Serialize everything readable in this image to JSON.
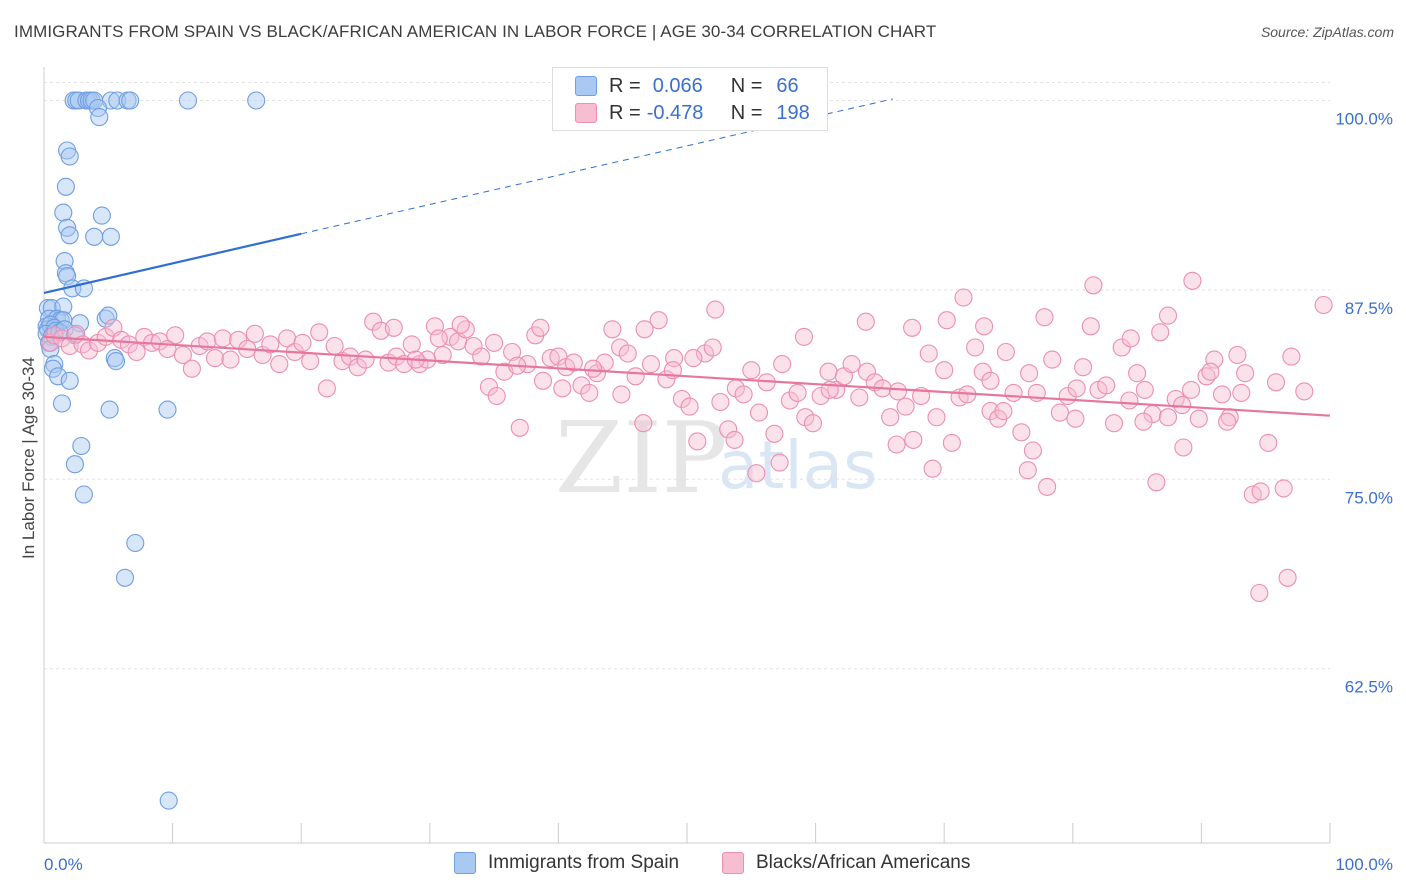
{
  "title": "IMMIGRANTS FROM SPAIN VS BLACK/AFRICAN AMERICAN IN LABOR FORCE | AGE 30-34 CORRELATION CHART",
  "source": "Source: ZipAtlas.com",
  "watermark": {
    "zip": "ZIP",
    "atlas": "atlas"
  },
  "legend": {
    "series": [
      {
        "r_label": "R =",
        "r_value": "0.066",
        "n_label": "N =",
        "n_value": "66",
        "color": "#a9c8f2",
        "stroke": "#6f9fe0"
      },
      {
        "r_label": "R =",
        "r_value": "-0.478",
        "n_label": "N =",
        "n_value": "198",
        "color": "#f7bdd0",
        "stroke": "#ec8fb1"
      }
    ]
  },
  "chart_data": {
    "type": "scatter",
    "title": "IMMIGRANTS FROM SPAIN VS BLACK/AFRICAN AMERICAN IN LABOR FORCE | AGE 30-34 CORRELATION CHART",
    "xlabel": "",
    "ylabel": "In Labor Force | Age 30-34",
    "xlim": [
      0,
      100
    ],
    "ylim": [
      51,
      103
    ],
    "x_tick_labels": [
      "0.0%",
      "100.0%"
    ],
    "y_ticks": [
      62.5,
      75.0,
      87.5,
      100.0
    ],
    "y_tick_labels": [
      "62.5%",
      "75.0%",
      "87.5%",
      "100.0%"
    ],
    "grid": true,
    "legend_position": "bottom",
    "series": [
      {
        "name": "Immigrants from Spain",
        "color": "#6f9fe0",
        "fill": "#a9c8f2",
        "trend": {
          "x": [
            0,
            20
          ],
          "y": [
            87.3,
            91.2
          ],
          "dashed_extension": {
            "x": [
              20,
              66
            ],
            "y": [
              91.2,
              100.1
            ]
          },
          "color": "#2f6fd0"
        },
        "points": [
          [
            2.3,
            100
          ],
          [
            2.5,
            100
          ],
          [
            2.7,
            100
          ],
          [
            3.3,
            100
          ],
          [
            3.5,
            100
          ],
          [
            3.7,
            100
          ],
          [
            3.9,
            100
          ],
          [
            5.2,
            100
          ],
          [
            5.7,
            100
          ],
          [
            6.5,
            100
          ],
          [
            6.7,
            100
          ],
          [
            11.2,
            100
          ],
          [
            16.5,
            100
          ],
          [
            4.2,
            99.5
          ],
          [
            4.3,
            98.9
          ],
          [
            1.8,
            96.7
          ],
          [
            2.0,
            96.3
          ],
          [
            1.7,
            94.3
          ],
          [
            1.5,
            92.6
          ],
          [
            4.5,
            92.4
          ],
          [
            1.8,
            91.6
          ],
          [
            2.0,
            91.1
          ],
          [
            3.9,
            91.0
          ],
          [
            5.2,
            91.0
          ],
          [
            1.6,
            89.4
          ],
          [
            1.7,
            88.6
          ],
          [
            1.8,
            88.4
          ],
          [
            2.2,
            87.6
          ],
          [
            3.1,
            87.6
          ],
          [
            0.3,
            86.3
          ],
          [
            0.6,
            86.3
          ],
          [
            1.5,
            86.4
          ],
          [
            0.4,
            85.6
          ],
          [
            1.0,
            85.6
          ],
          [
            1.3,
            85.5
          ],
          [
            1.5,
            85.5
          ],
          [
            4.8,
            85.6
          ],
          [
            2.8,
            85.3
          ],
          [
            5.0,
            85.8
          ],
          [
            0.2,
            85.1
          ],
          [
            0.3,
            84.9
          ],
          [
            0.5,
            85.2
          ],
          [
            0.8,
            85.0
          ],
          [
            0.2,
            84.6
          ],
          [
            0.6,
            84.4
          ],
          [
            0.9,
            84.8
          ],
          [
            1.2,
            84.7
          ],
          [
            1.6,
            84.9
          ],
          [
            2.4,
            84.5
          ],
          [
            0.4,
            84.0
          ],
          [
            0.5,
            83.6
          ],
          [
            5.5,
            83.0
          ],
          [
            5.6,
            82.8
          ],
          [
            0.8,
            82.6
          ],
          [
            0.7,
            82.3
          ],
          [
            1.1,
            81.8
          ],
          [
            2.0,
            81.5
          ],
          [
            1.4,
            80.0
          ],
          [
            5.1,
            79.6
          ],
          [
            9.6,
            79.6
          ],
          [
            2.9,
            77.2
          ],
          [
            2.4,
            76.0
          ],
          [
            3.1,
            74.0
          ],
          [
            7.1,
            70.8
          ],
          [
            6.3,
            68.5
          ],
          [
            9.7,
            53.8
          ]
        ]
      },
      {
        "name": "Blacks/African Americans",
        "color": "#ec8fb1",
        "fill": "#f7bdd0",
        "trend": {
          "x": [
            0,
            100
          ],
          "y": [
            84.4,
            79.2
          ],
          "color": "#e7769e"
        },
        "points": [
          [
            0.5,
            84.0
          ],
          [
            0.8,
            84.5
          ],
          [
            1.4,
            84.3
          ],
          [
            2.0,
            83.8
          ],
          [
            2.5,
            84.6
          ],
          [
            3.0,
            83.9
          ],
          [
            3.5,
            83.5
          ],
          [
            4.2,
            84.0
          ],
          [
            4.8,
            84.4
          ],
          [
            5.4,
            85.0
          ],
          [
            6.0,
            84.2
          ],
          [
            6.6,
            83.9
          ],
          [
            7.2,
            83.4
          ],
          [
            7.8,
            84.4
          ],
          [
            8.4,
            84.0
          ],
          [
            9.0,
            84.1
          ],
          [
            9.6,
            83.6
          ],
          [
            10.2,
            84.5
          ],
          [
            10.8,
            83.2
          ],
          [
            11.5,
            82.3
          ],
          [
            12.1,
            83.8
          ],
          [
            12.7,
            84.1
          ],
          [
            13.3,
            83.0
          ],
          [
            13.9,
            84.3
          ],
          [
            14.5,
            82.9
          ],
          [
            15.1,
            84.2
          ],
          [
            15.8,
            83.6
          ],
          [
            16.4,
            84.6
          ],
          [
            17.0,
            83.2
          ],
          [
            17.6,
            83.9
          ],
          [
            18.3,
            82.6
          ],
          [
            18.9,
            84.3
          ],
          [
            19.5,
            83.4
          ],
          [
            20.1,
            84.0
          ],
          [
            20.7,
            82.8
          ],
          [
            21.4,
            84.7
          ],
          [
            22.0,
            81.0
          ],
          [
            22.6,
            83.8
          ],
          [
            23.2,
            82.8
          ],
          [
            23.8,
            83.1
          ],
          [
            24.4,
            82.4
          ],
          [
            25.0,
            82.9
          ],
          [
            25.6,
            85.4
          ],
          [
            26.2,
            84.8
          ],
          [
            26.8,
            82.7
          ],
          [
            27.4,
            83.1
          ],
          [
            28.0,
            82.6
          ],
          [
            28.6,
            83.9
          ],
          [
            29.2,
            82.6
          ],
          [
            29.8,
            82.9
          ],
          [
            30.4,
            85.1
          ],
          [
            31.0,
            83.2
          ],
          [
            31.6,
            84.4
          ],
          [
            32.2,
            84.1
          ],
          [
            32.8,
            84.9
          ],
          [
            33.4,
            83.8
          ],
          [
            34.0,
            83.1
          ],
          [
            34.6,
            81.1
          ],
          [
            35.2,
            80.5
          ],
          [
            35.8,
            82.1
          ],
          [
            36.4,
            83.4
          ],
          [
            37.0,
            78.4
          ],
          [
            37.6,
            82.6
          ],
          [
            38.2,
            84.5
          ],
          [
            38.8,
            81.5
          ],
          [
            39.4,
            83.0
          ],
          [
            40.0,
            83.1
          ],
          [
            40.6,
            82.4
          ],
          [
            41.2,
            82.7
          ],
          [
            41.8,
            81.2
          ],
          [
            42.4,
            80.7
          ],
          [
            43.0,
            82.0
          ],
          [
            43.6,
            82.7
          ],
          [
            44.2,
            84.9
          ],
          [
            44.8,
            83.7
          ],
          [
            45.4,
            83.3
          ],
          [
            46.0,
            81.8
          ],
          [
            46.6,
            78.7
          ],
          [
            47.2,
            82.6
          ],
          [
            47.8,
            85.5
          ],
          [
            48.4,
            81.6
          ],
          [
            49.0,
            83.0
          ],
          [
            49.6,
            80.3
          ],
          [
            50.2,
            79.8
          ],
          [
            50.8,
            77.5
          ],
          [
            51.4,
            83.3
          ],
          [
            52.0,
            83.7
          ],
          [
            52.6,
            80.1
          ],
          [
            53.2,
            78.3
          ],
          [
            53.8,
            81.0
          ],
          [
            54.4,
            80.6
          ],
          [
            55.0,
            82.2
          ],
          [
            55.6,
            79.4
          ],
          [
            56.2,
            81.4
          ],
          [
            56.8,
            78.0
          ],
          [
            57.4,
            82.6
          ],
          [
            58.0,
            80.2
          ],
          [
            58.6,
            80.7
          ],
          [
            59.2,
            79.1
          ],
          [
            59.8,
            78.7
          ],
          [
            60.4,
            80.5
          ],
          [
            61.0,
            82.1
          ],
          [
            61.6,
            80.9
          ],
          [
            62.2,
            81.8
          ],
          [
            62.8,
            82.6
          ],
          [
            63.4,
            80.4
          ],
          [
            64.0,
            82.1
          ],
          [
            64.6,
            81.4
          ],
          [
            65.2,
            81.0
          ],
          [
            65.8,
            79.1
          ],
          [
            66.4,
            80.8
          ],
          [
            67.0,
            79.8
          ],
          [
            67.6,
            77.6
          ],
          [
            68.2,
            80.5
          ],
          [
            68.8,
            83.3
          ],
          [
            69.4,
            79.1
          ],
          [
            70.0,
            82.2
          ],
          [
            70.6,
            77.4
          ],
          [
            71.2,
            80.4
          ],
          [
            71.8,
            80.6
          ],
          [
            72.4,
            83.7
          ],
          [
            73.0,
            82.1
          ],
          [
            73.6,
            79.5
          ],
          [
            74.2,
            79.0
          ],
          [
            74.8,
            83.4
          ],
          [
            75.4,
            80.7
          ],
          [
            76.0,
            78.1
          ],
          [
            76.6,
            82.0
          ],
          [
            77.2,
            80.7
          ],
          [
            77.8,
            85.7
          ],
          [
            78.4,
            82.9
          ],
          [
            79.0,
            79.4
          ],
          [
            79.6,
            80.5
          ],
          [
            80.2,
            79.0
          ],
          [
            80.8,
            82.4
          ],
          [
            81.4,
            85.1
          ],
          [
            82.0,
            80.9
          ],
          [
            82.6,
            81.2
          ],
          [
            83.2,
            78.7
          ],
          [
            83.8,
            83.7
          ],
          [
            84.4,
            80.2
          ],
          [
            85.0,
            82.0
          ],
          [
            85.6,
            80.9
          ],
          [
            86.2,
            79.3
          ],
          [
            86.8,
            84.7
          ],
          [
            87.4,
            79.1
          ],
          [
            88.0,
            80.3
          ],
          [
            88.6,
            77.1
          ],
          [
            89.2,
            80.9
          ],
          [
            89.8,
            79.0
          ],
          [
            90.4,
            81.8
          ],
          [
            91.0,
            82.9
          ],
          [
            91.6,
            80.6
          ],
          [
            92.2,
            79.1
          ],
          [
            92.8,
            83.2
          ],
          [
            93.4,
            82.0
          ],
          [
            94.0,
            74.0
          ],
          [
            94.6,
            74.2
          ],
          [
            95.2,
            77.4
          ],
          [
            95.8,
            81.4
          ],
          [
            96.4,
            74.4
          ],
          [
            97.0,
            83.1
          ],
          [
            98.0,
            80.8
          ],
          [
            99.5,
            86.5
          ],
          [
            67.5,
            85.0
          ],
          [
            70.2,
            85.5
          ],
          [
            71.5,
            87.0
          ],
          [
            73.6,
            81.5
          ],
          [
            76.5,
            75.6
          ],
          [
            78.0,
            74.5
          ],
          [
            81.6,
            87.8
          ],
          [
            84.5,
            84.3
          ],
          [
            85.5,
            78.8
          ],
          [
            86.5,
            74.8
          ],
          [
            88.5,
            79.9
          ],
          [
            90.7,
            82.1
          ],
          [
            92.0,
            78.8
          ],
          [
            93.1,
            80.7
          ],
          [
            94.5,
            67.5
          ],
          [
            96.7,
            68.5
          ],
          [
            89.3,
            88.1
          ],
          [
            87.4,
            85.8
          ],
          [
            80.3,
            81.0
          ],
          [
            76.9,
            76.9
          ],
          [
            74.6,
            79.5
          ],
          [
            73.1,
            85.1
          ],
          [
            69.1,
            75.7
          ],
          [
            66.3,
            77.3
          ],
          [
            63.9,
            85.4
          ],
          [
            61.1,
            80.9
          ],
          [
            59.1,
            84.4
          ],
          [
            57.2,
            76.1
          ],
          [
            55.4,
            75.4
          ],
          [
            53.7,
            77.6
          ],
          [
            52.2,
            86.2
          ],
          [
            50.5,
            83.0
          ],
          [
            48.9,
            82.2
          ],
          [
            46.7,
            84.9
          ],
          [
            44.9,
            80.6
          ],
          [
            42.7,
            82.3
          ],
          [
            40.3,
            81.0
          ],
          [
            38.6,
            85.0
          ],
          [
            36.8,
            82.5
          ],
          [
            35.0,
            84.0
          ],
          [
            32.4,
            85.2
          ],
          [
            30.7,
            84.3
          ],
          [
            28.9,
            82.9
          ],
          [
            27.2,
            85.0
          ]
        ]
      }
    ]
  },
  "bottom_legend": [
    {
      "label": "Immigrants from Spain",
      "color": "#a9c8f2",
      "stroke": "#6f9fe0"
    },
    {
      "label": "Blacks/African Americans",
      "color": "#f7bdd0",
      "stroke": "#ec8fb1"
    }
  ]
}
